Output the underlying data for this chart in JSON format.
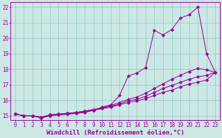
{
  "xlabel": "Windchill (Refroidissement éolien,°C)",
  "bg_color": "#cce8e4",
  "line_color": "#990099",
  "grid_color": "#99cccc",
  "xlim": [
    -0.5,
    23.5
  ],
  "ylim": [
    14.7,
    22.3
  ],
  "yticks": [
    15,
    16,
    17,
    18,
    19,
    20,
    21,
    22
  ],
  "xticks": [
    0,
    1,
    2,
    3,
    4,
    5,
    6,
    7,
    8,
    9,
    10,
    11,
    12,
    13,
    14,
    15,
    16,
    17,
    18,
    19,
    20,
    21,
    22,
    23
  ],
  "line1_x": [
    0,
    1,
    2,
    3,
    4,
    5,
    6,
    7,
    8,
    9,
    10,
    11,
    12,
    13,
    14,
    15,
    16,
    17,
    18,
    19,
    20,
    21,
    22,
    23
  ],
  "line1_y": [
    15.1,
    15.0,
    15.0,
    14.85,
    15.0,
    15.05,
    15.1,
    15.15,
    15.2,
    15.35,
    15.55,
    15.7,
    16.3,
    17.55,
    17.75,
    18.1,
    20.5,
    20.2,
    20.55,
    21.3,
    21.5,
    22.0,
    19.0,
    17.8
  ],
  "line2_x": [
    0,
    1,
    2,
    3,
    4,
    5,
    6,
    7,
    8,
    9,
    10,
    11,
    12,
    13,
    14,
    15,
    16,
    17,
    18,
    19,
    20,
    21,
    22,
    23
  ],
  "line2_y": [
    15.1,
    15.0,
    15.0,
    14.85,
    15.0,
    15.05,
    15.1,
    15.15,
    15.25,
    15.35,
    15.5,
    15.65,
    15.85,
    16.05,
    16.2,
    16.45,
    16.75,
    17.05,
    17.35,
    17.6,
    17.85,
    18.05,
    17.95,
    17.8
  ],
  "line3_x": [
    0,
    1,
    2,
    3,
    4,
    5,
    6,
    7,
    8,
    9,
    10,
    11,
    12,
    13,
    14,
    15,
    16,
    17,
    18,
    19,
    20,
    21,
    22,
    23
  ],
  "line3_y": [
    15.1,
    15.0,
    15.0,
    14.9,
    15.05,
    15.1,
    15.15,
    15.2,
    15.3,
    15.35,
    15.45,
    15.55,
    15.7,
    15.85,
    15.95,
    16.1,
    16.3,
    16.5,
    16.65,
    16.85,
    17.05,
    17.15,
    17.3,
    17.8
  ],
  "line4_x": [
    0,
    1,
    2,
    3,
    4,
    5,
    6,
    7,
    8,
    9,
    10,
    11,
    12,
    13,
    14,
    15,
    16,
    17,
    18,
    19,
    20,
    21,
    22,
    23
  ],
  "line4_y": [
    15.1,
    15.0,
    15.0,
    14.9,
    15.05,
    15.1,
    15.15,
    15.2,
    15.3,
    15.4,
    15.5,
    15.6,
    15.75,
    15.95,
    16.05,
    16.25,
    16.5,
    16.75,
    16.95,
    17.15,
    17.35,
    17.5,
    17.6,
    17.8
  ],
  "xlabel_fontsize": 6.5,
  "tick_fontsize": 5.5
}
